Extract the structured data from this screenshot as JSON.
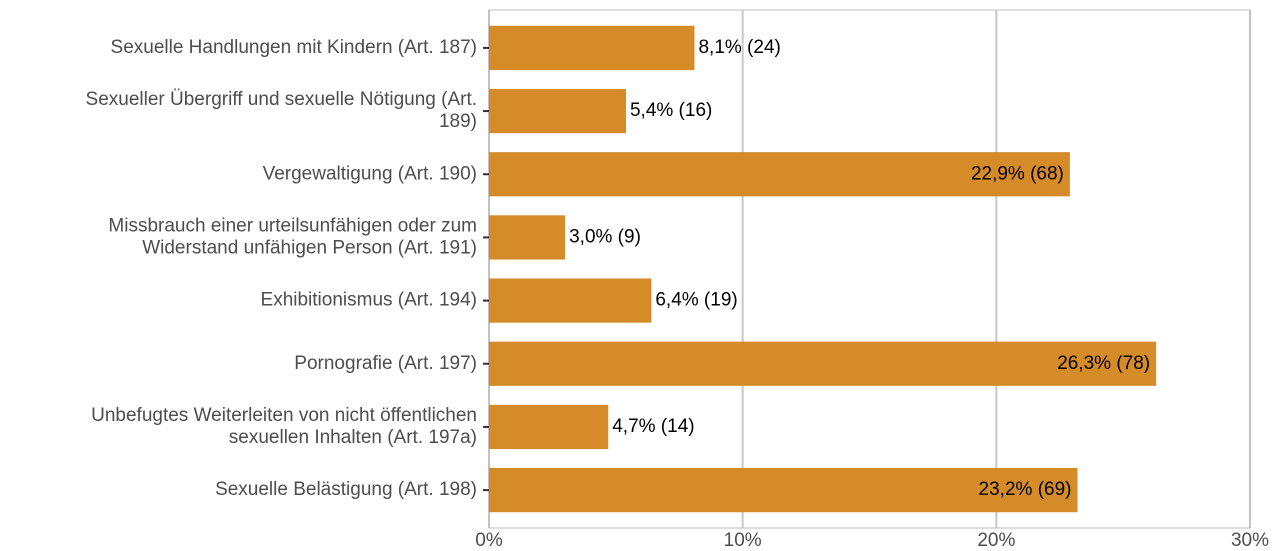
{
  "chart_data": {
    "type": "bar",
    "orientation": "horizontal",
    "categories": [
      "Sexuelle Handlungen mit Kindern (Art. 187)",
      "Sexueller Übergriff und sexuelle Nötigung (Art.\n189)",
      "Vergewaltigung (Art. 190)",
      "Missbrauch einer urteilsunfähigen oder zum\nWiderstand unfähigen Person (Art. 191)",
      "Exhibitionismus (Art. 194)",
      "Pornografie (Art. 197)",
      "Unbefugtes Weiterleiten von nicht öffentlichen\nsexuellen Inhalten (Art. 197a)",
      "Sexuelle Belästigung (Art. 198)"
    ],
    "values": [
      8.1,
      5.4,
      22.9,
      3.0,
      6.4,
      26.3,
      4.7,
      23.2
    ],
    "value_labels": [
      "8,1% (24)",
      "5,4% (16)",
      "22,9% (68)",
      "3,0% (9)",
      "6,4% (19)",
      "26,3% (78)",
      "4,7% (14)",
      "23,2% (69)"
    ],
    "color": "#d58b28",
    "xlim": [
      0,
      30
    ],
    "xticks": [
      {
        "value": 0,
        "label": "0%"
      },
      {
        "value": 10,
        "label": "10%"
      },
      {
        "value": 20,
        "label": "20%"
      },
      {
        "value": 30,
        "label": "30%"
      }
    ],
    "grid": true
  }
}
